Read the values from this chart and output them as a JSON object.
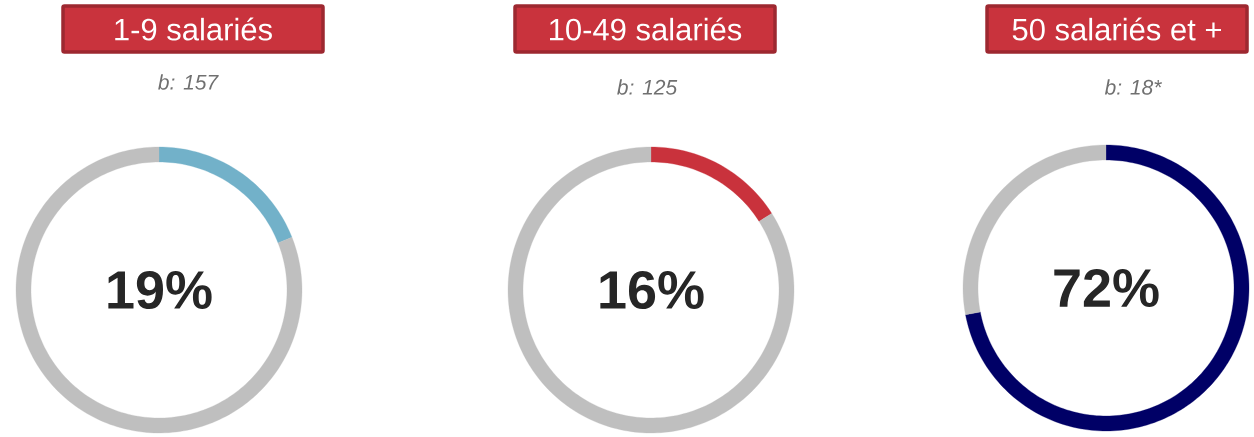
{
  "chart_data": [
    {
      "type": "donut",
      "title": "1-9 salariés",
      "subtitle": "b: 157",
      "categories": [
        null,
        null
      ],
      "values": [
        19,
        81
      ],
      "colors": [
        "#72b1c9",
        "#bfbfbf"
      ],
      "annotations": [
        "19%"
      ]
    },
    {
      "type": "donut",
      "title": "10-49 salariés",
      "subtitle": "b: 125",
      "categories": [
        null,
        null
      ],
      "values": [
        16,
        84
      ],
      "colors": [
        "#c9323c",
        "#bfbfbf"
      ],
      "annotations": [
        "16%"
      ]
    },
    {
      "type": "donut",
      "title": "50 salariés et +",
      "subtitle": "b: 18*",
      "categories": [
        null,
        null
      ],
      "values": [
        72,
        28
      ],
      "colors": [
        "#000066",
        "#bfbfbf"
      ],
      "annotations": [
        "72%"
      ]
    }
  ]
}
